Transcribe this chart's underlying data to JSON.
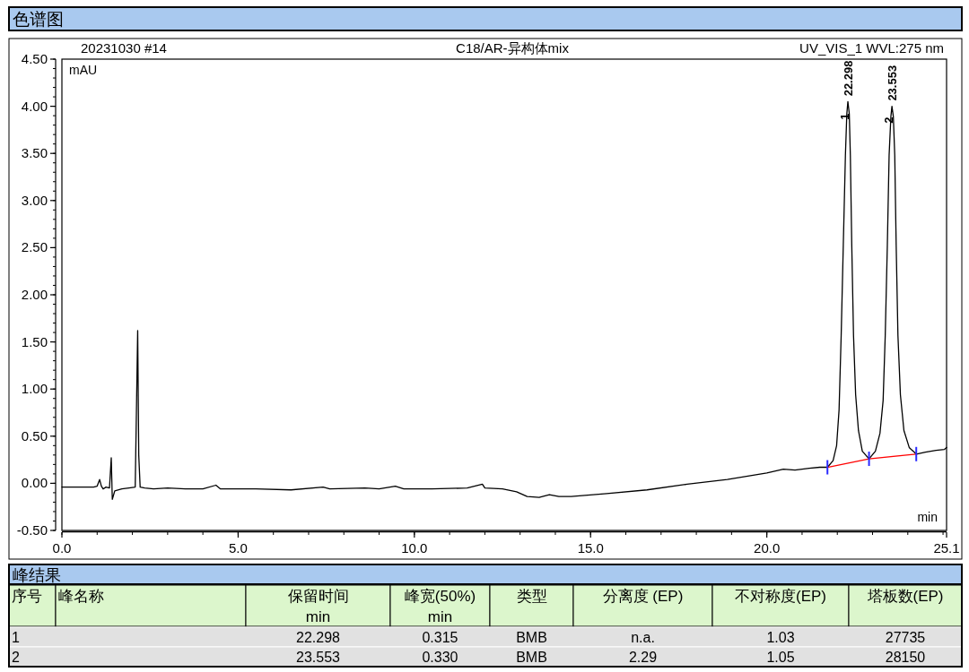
{
  "chart_data": [
    {
      "type": "line",
      "title": "色谱图",
      "subtitle": "C18/AR-异构体mix",
      "xlabel": "min",
      "ylabel": "mAU",
      "xlim": [
        0,
        25.1
      ],
      "ylim": [
        -0.5,
        4.5
      ],
      "xticks": [
        {
          "value": 0,
          "label": "0.0"
        },
        {
          "value": 5,
          "label": "5.0"
        },
        {
          "value": 10,
          "label": "10.0"
        },
        {
          "value": 15,
          "label": "15.0"
        },
        {
          "value": 20,
          "label": "20.0"
        },
        25.1
      ],
      "yticks": [
        {
          "value": -0.5,
          "label": "-0.50"
        },
        {
          "value": 0,
          "label": "0.00"
        },
        {
          "value": 0.5,
          "label": "0.50"
        },
        {
          "value": 1,
          "label": "1.00"
        },
        {
          "value": 1.5,
          "label": "1.50"
        },
        {
          "value": 2,
          "label": "2.00"
        },
        {
          "value": 2.5,
          "label": "2.50"
        },
        {
          "value": 3,
          "label": "3.00"
        },
        {
          "value": 3.5,
          "label": "3.50"
        },
        {
          "value": 4,
          "label": "4.00"
        },
        {
          "value": 4.5,
          "label": "4.50"
        }
      ],
      "series": [
        {
          "color": "#000000",
          "x": [
            0,
            0.5,
            0.9,
            1.0,
            1.07,
            1.12,
            1.17,
            1.25,
            1.35,
            1.4,
            1.43,
            1.5,
            1.7,
            1.9,
            2.08,
            2.12,
            2.15,
            2.18,
            2.22,
            2.35,
            2.6,
            3.0,
            3.5,
            4.0,
            4.37,
            4.5,
            5.5,
            6.5,
            7.41,
            7.6,
            8.6,
            9.0,
            9.46,
            9.7,
            10.5,
            11.5,
            11.93,
            12.0,
            12.5,
            12.9,
            13.2,
            13.54,
            13.83,
            14.1,
            14.45,
            15.46,
            16.6,
            17.74,
            18.88,
            20.0,
            20.47,
            20.8,
            21.2,
            21.5,
            21.72,
            21.88,
            21.98,
            22.05,
            22.11,
            22.17,
            22.23,
            22.27,
            22.3,
            22.34,
            22.37,
            22.41,
            22.46,
            22.52,
            22.6,
            22.71,
            22.9,
            23.08,
            23.21,
            23.3,
            23.36,
            23.42,
            23.47,
            23.52,
            23.55,
            23.59,
            23.63,
            23.67,
            23.72,
            23.79,
            23.89,
            24.04,
            24.24,
            24.5,
            24.8,
            25.04,
            25.1
          ],
          "values": [
            -0.04,
            -0.04,
            -0.04,
            -0.03,
            0.04,
            -0.03,
            -0.06,
            -0.04,
            -0.05,
            0.27,
            -0.17,
            -0.08,
            -0.06,
            -0.05,
            -0.04,
            0.9,
            1.62,
            0.3,
            -0.04,
            -0.05,
            -0.06,
            -0.05,
            -0.06,
            -0.06,
            -0.02,
            -0.06,
            -0.06,
            -0.07,
            -0.04,
            -0.06,
            -0.05,
            -0.06,
            -0.03,
            -0.06,
            -0.06,
            -0.05,
            -0.01,
            -0.05,
            -0.06,
            -0.09,
            -0.14,
            -0.15,
            -0.12,
            -0.14,
            -0.14,
            -0.11,
            -0.07,
            -0.01,
            0.04,
            0.11,
            0.15,
            0.14,
            0.16,
            0.17,
            0.17,
            0.24,
            0.4,
            0.78,
            1.57,
            2.53,
            3.48,
            3.92,
            4.05,
            3.92,
            3.48,
            2.53,
            1.57,
            0.94,
            0.56,
            0.34,
            0.26,
            0.34,
            0.53,
            0.88,
            1.57,
            2.53,
            3.48,
            3.89,
            4.0,
            3.89,
            3.48,
            2.53,
            1.57,
            0.94,
            0.56,
            0.38,
            0.31,
            0.33,
            0.35,
            0.36,
            0.38
          ]
        },
        {
          "color": "#ff0000",
          "x": [
            21.72,
            22.9,
            24.24
          ],
          "values": [
            0.17,
            0.26,
            0.31
          ]
        }
      ],
      "annotations": [
        "20231030 #14",
        "UV_VIS_1 WVL:275 nm",
        {
          "text": "1",
          "x": 22.2,
          "y": 3.8
        },
        {
          "text": "22.298",
          "x": 22.298,
          "y": 4.05
        },
        {
          "text": "2",
          "x": 23.45,
          "y": 3.76
        },
        {
          "text": "23.553",
          "x": 23.553,
          "y": 4.0
        }
      ]
    },
    {
      "type": "other",
      "title": "峰结果",
      "categories": [
        "序号",
        "峰名称",
        "保留时间",
        "峰宽(50%)",
        "类型",
        "分离度 (EP)",
        "不对称度(EP)",
        "塔板数(EP)"
      ],
      "cell_labels": [
        [
          null,
          null,
          "min",
          "min",
          null,
          null,
          null,
          null
        ],
        [
          "1",
          null,
          "22.298",
          "0.315",
          "BMB",
          "n.a.",
          "1.03",
          "27735"
        ],
        [
          "2",
          null,
          "23.553",
          "0.330",
          "BMB",
          "2.29",
          "1.05",
          "28150"
        ]
      ]
    }
  ]
}
